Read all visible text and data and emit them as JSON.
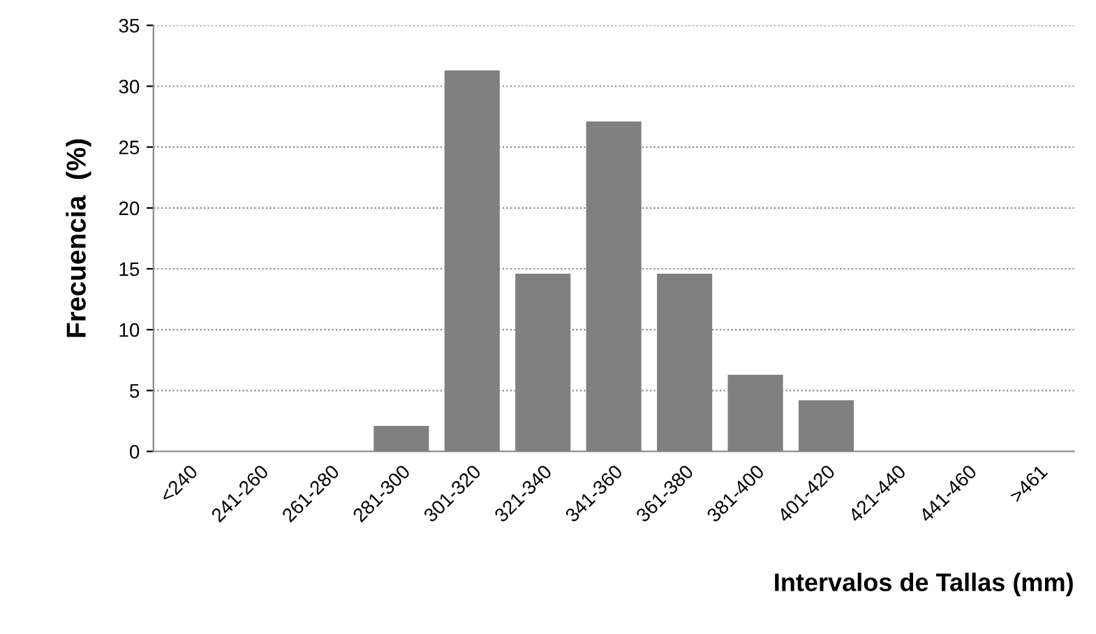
{
  "chart_data": {
    "type": "bar",
    "xlabel": "Intervalos de Tallas (mm)",
    "ylabel": "Frecuencia  (%)",
    "categories": [
      "<240",
      "241-260",
      "261-280",
      "281-300",
      "301-320",
      "321-340",
      "341-360",
      "361-380",
      "381-400",
      "401-420",
      "421-440",
      "441-460",
      ">461"
    ],
    "values": [
      0,
      0,
      0,
      2.1,
      31.3,
      14.6,
      27.1,
      14.6,
      6.3,
      4.2,
      0,
      0,
      0
    ],
    "color": "#808080",
    "ylim": [
      0,
      35
    ],
    "yticks": [
      0,
      5,
      10,
      15,
      20,
      25,
      30,
      35
    ],
    "grid": "y",
    "legend": false
  }
}
